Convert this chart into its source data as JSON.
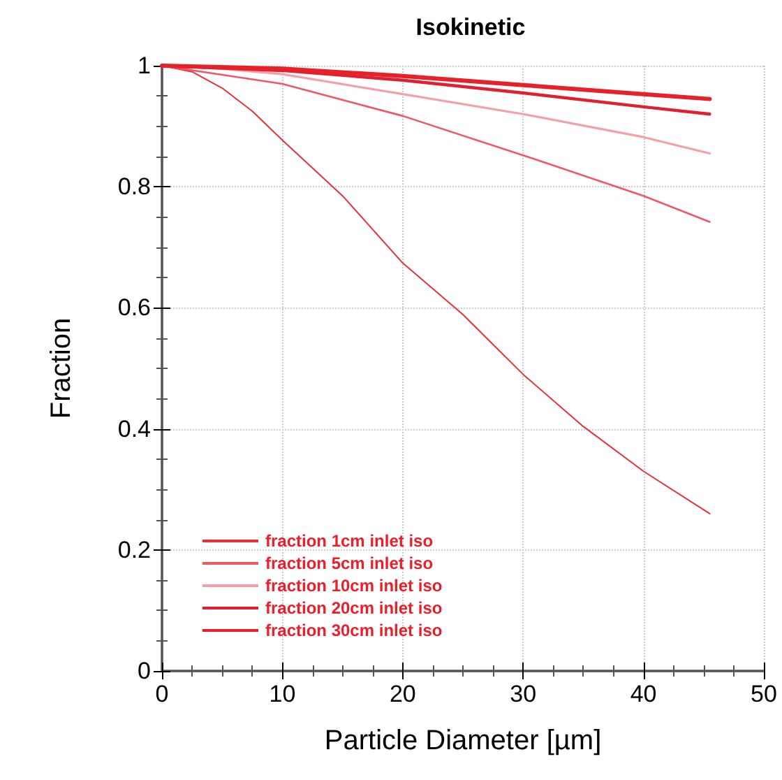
{
  "chart_data": {
    "type": "line",
    "title": "Isokinetic",
    "xlabel": "Particle Diameter [µm]",
    "ylabel": "Fraction",
    "xlim": [
      0,
      50
    ],
    "xticks": [
      0,
      10,
      20,
      30,
      40,
      50
    ],
    "ylim": [
      0,
      1
    ],
    "yticks": [
      0,
      0.2,
      0.4,
      0.6,
      0.8,
      1
    ],
    "grid": true,
    "legend": "bottom left",
    "marker": "none",
    "line_style": "solid",
    "series": [
      {
        "name": "fraction 1cm inlet iso",
        "color": "#e8303a",
        "x": [
          0,
          2.5,
          5,
          7.5,
          10,
          15,
          20,
          25,
          30,
          35,
          40,
          45.5
        ],
        "values": [
          1,
          0.99,
          0.963,
          0.925,
          0.877,
          0.785,
          0.674,
          0.589,
          0.49,
          0.404,
          0.33,
          0.26
        ]
      },
      {
        "name": "fraction 5cm inlet iso",
        "color": "#f05868",
        "x": [
          0,
          5,
          10,
          20,
          30,
          40,
          45.5
        ],
        "values": [
          1,
          0.985,
          0.97,
          0.917,
          0.852,
          0.785,
          0.742
        ]
      },
      {
        "name": "fraction 10cm inlet iso",
        "color": "#f4a0a8",
        "x": [
          0,
          5,
          10,
          20,
          30,
          40,
          45.5
        ],
        "values": [
          1,
          0.995,
          0.986,
          0.953,
          0.92,
          0.882,
          0.855
        ]
      },
      {
        "name": "fraction 20cm inlet iso",
        "color": "#e02030",
        "x": [
          0,
          10,
          20,
          30,
          40,
          45.5
        ],
        "values": [
          1,
          0.992,
          0.976,
          0.955,
          0.932,
          0.92
        ]
      },
      {
        "name": "fraction 30cm inlet iso",
        "color": "#e8202a",
        "x": [
          0,
          10,
          20,
          30,
          40,
          45.5
        ],
        "values": [
          1,
          0.995,
          0.983,
          0.968,
          0.953,
          0.945
        ]
      }
    ]
  }
}
